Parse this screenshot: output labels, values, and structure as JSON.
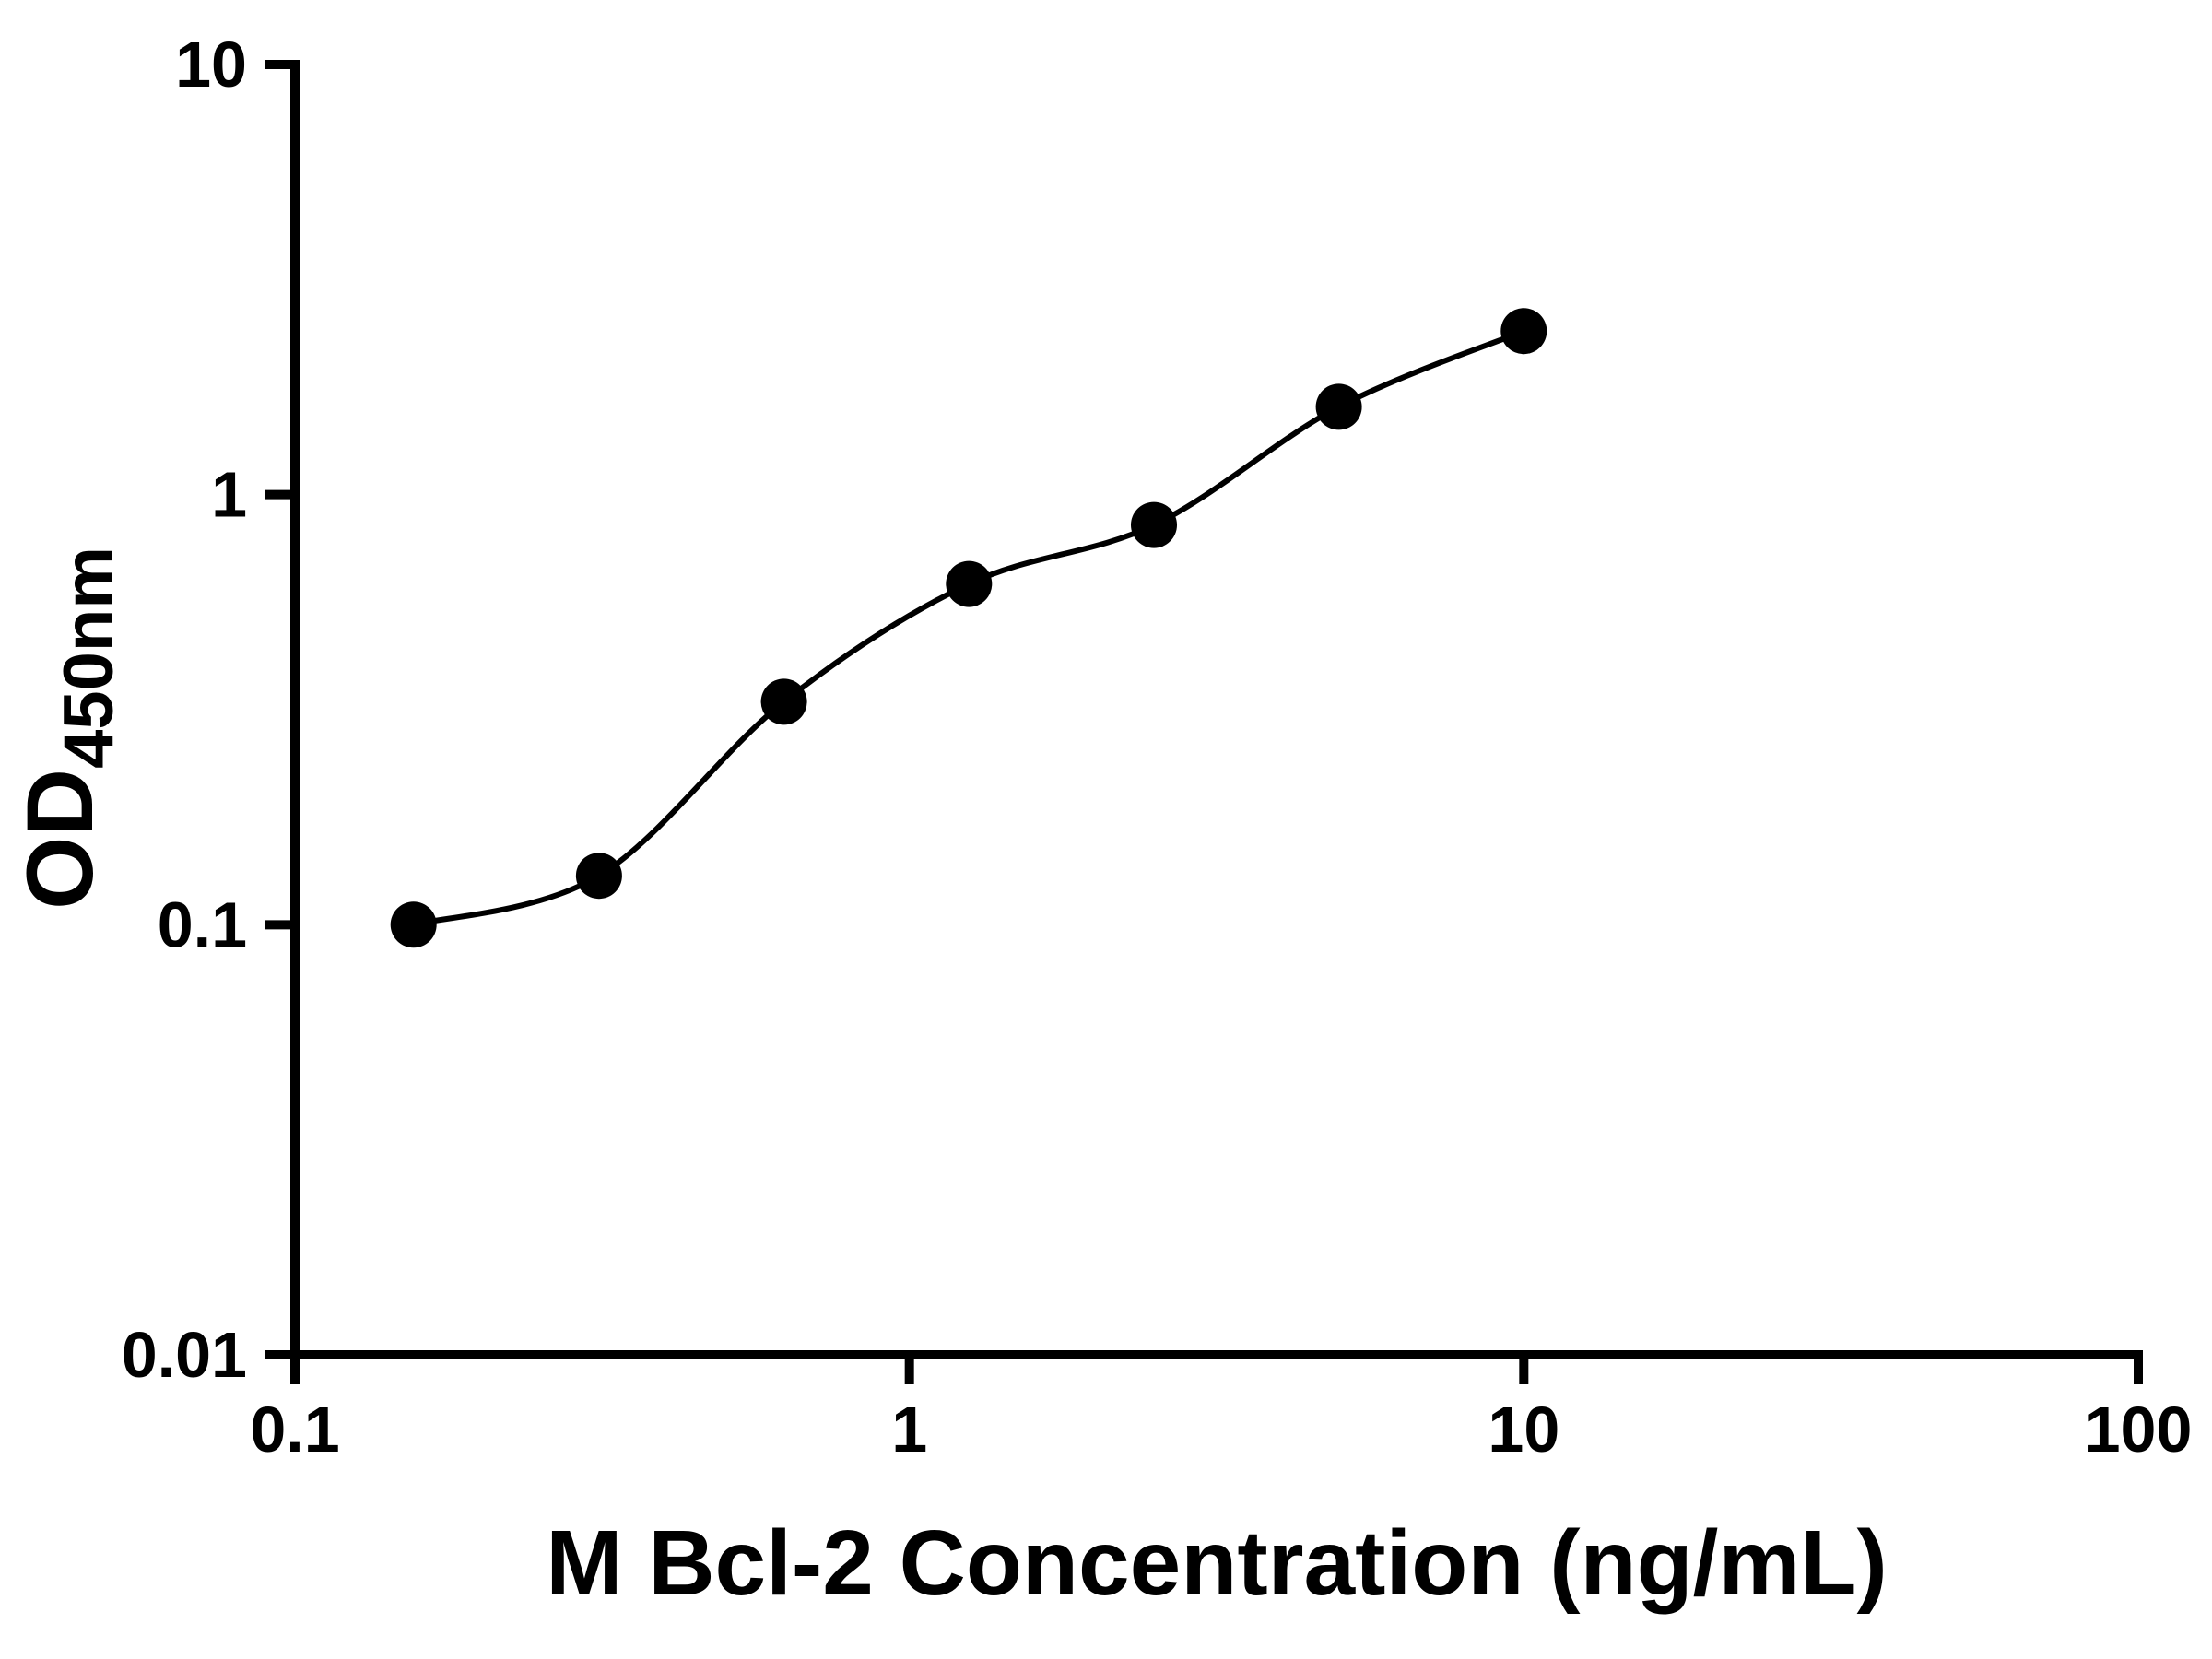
{
  "chart_data": {
    "type": "scatter",
    "subtype": "elisa-standard-curve-with-fit-line",
    "x": [
      0.156,
      0.3125,
      0.625,
      1.25,
      2.5,
      5,
      10
    ],
    "y": [
      0.1,
      0.13,
      0.33,
      0.62,
      0.85,
      1.6,
      2.4
    ],
    "xlabel": "M Bcl-2 Concentration (ng/mL)",
    "ylabel_main": "OD",
    "ylabel_sub": "450nm",
    "x_scale": "log10",
    "y_scale": "log10",
    "xlim": [
      0.1,
      100
    ],
    "ylim": [
      0.01,
      10
    ],
    "x_ticks": [
      0.1,
      1,
      10,
      100
    ],
    "x_tick_labels": [
      "0.1",
      "1",
      "10",
      "100"
    ],
    "y_ticks": [
      0.01,
      0.1,
      1,
      10
    ],
    "y_tick_labels": [
      "0.01",
      "0.1",
      "1",
      "10"
    ],
    "grid": false,
    "legend": null,
    "marker": "filled-circle",
    "marker_color": "#000000",
    "line_color": "#000000",
    "axis_color": "#000000",
    "background_color": "#ffffff"
  }
}
